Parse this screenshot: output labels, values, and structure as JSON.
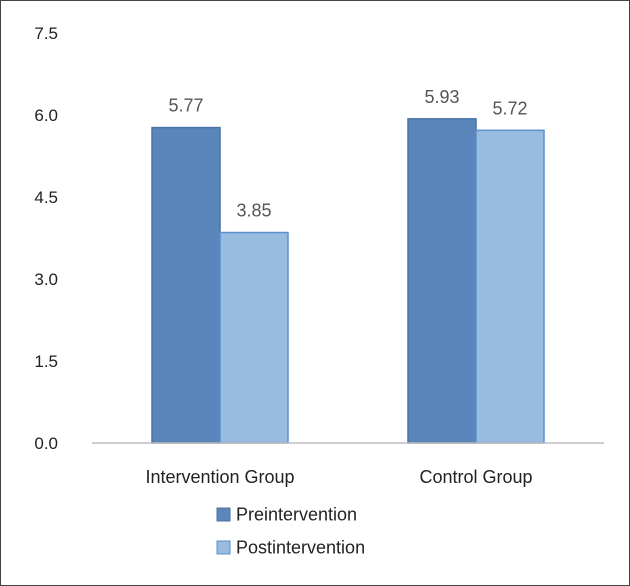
{
  "chart_data": {
    "type": "bar",
    "categories": [
      "Intervention Group",
      "Control Group"
    ],
    "series": [
      {
        "name": "Preintervention",
        "values": [
          5.77,
          5.93
        ],
        "color": "#5b86bb",
        "border": "#4a74a8"
      },
      {
        "name": "Postintervention",
        "values": [
          3.85,
          5.72
        ],
        "color": "#99bbdf",
        "border": "#5b8fd0"
      }
    ],
    "y_ticks": [
      "0.0",
      "1.5",
      "3.0",
      "4.5",
      "6.0",
      "7.5"
    ],
    "ylim": [
      0,
      7.5
    ],
    "data_labels": true,
    "grid": false,
    "legend_position": "bottom-center",
    "title": "",
    "xlabel": "",
    "ylabel": ""
  }
}
